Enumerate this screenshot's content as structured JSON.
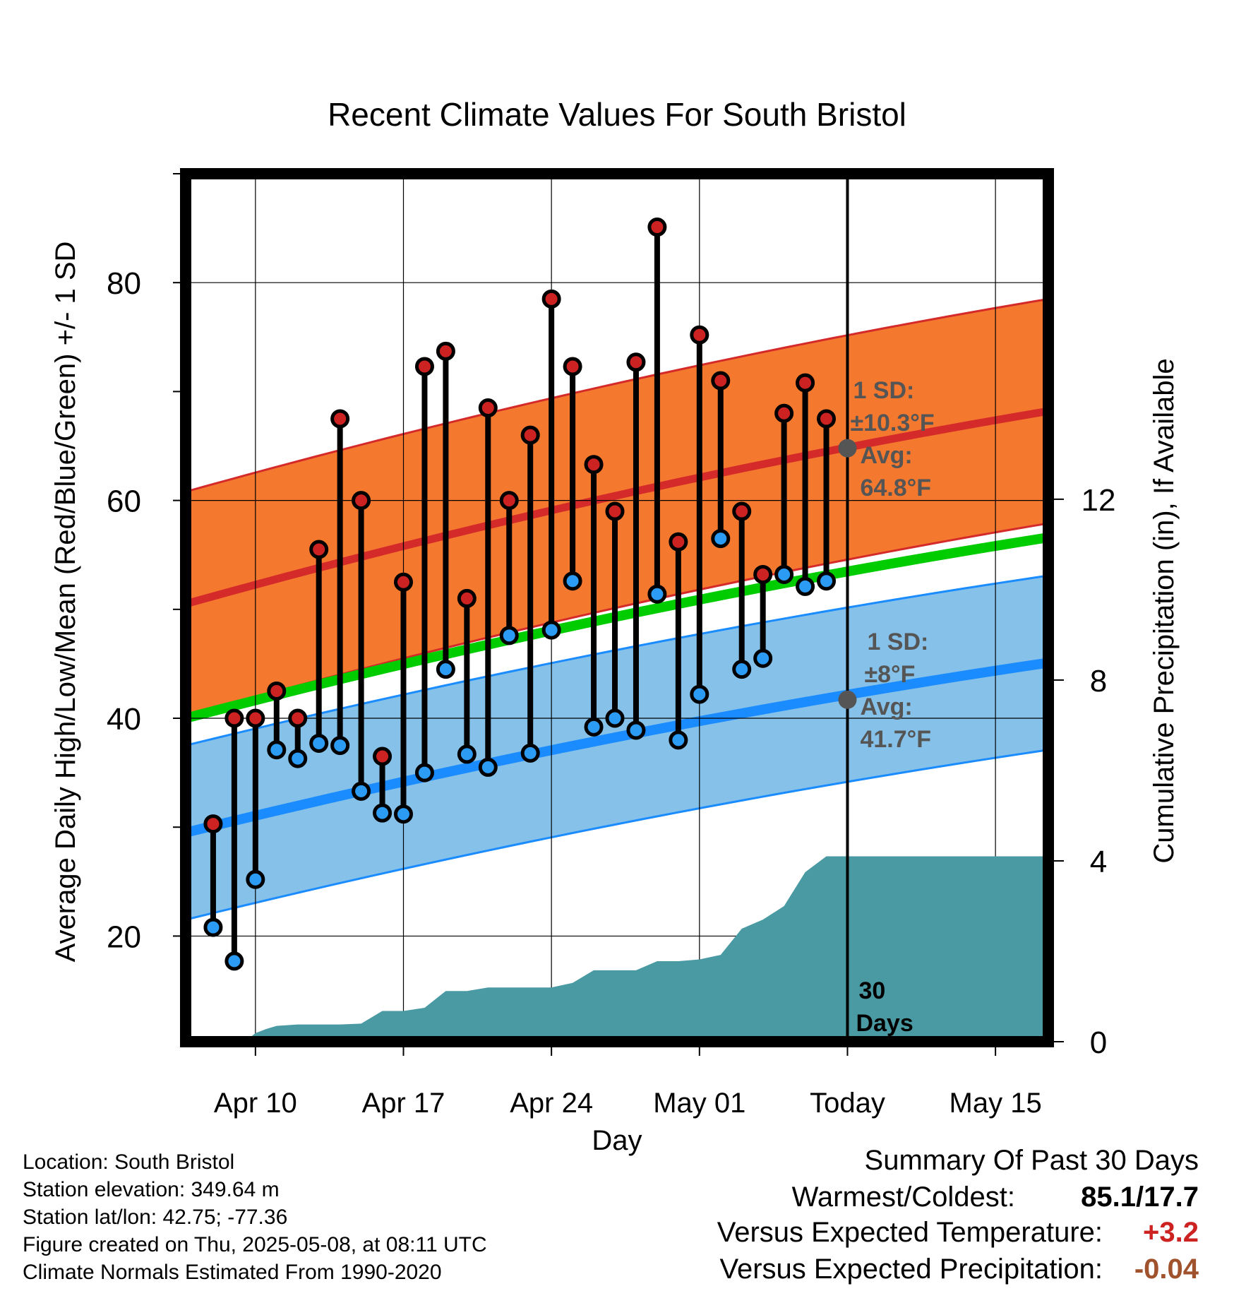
{
  "chart_data": {
    "type": "line",
    "title": "Recent Climate Values For South Bristol",
    "xlabel": "Day",
    "ylabel": "Average Daily High/Low/Mean (Red/Blue/Green) +/- 1 SD",
    "ylabel_right": "Cumulative Precipitation (in), If Available",
    "x_ticks": [
      {
        "day": 10,
        "label": "Apr 10"
      },
      {
        "day": 17,
        "label": "Apr 17"
      },
      {
        "day": 24,
        "label": "Apr 24"
      },
      {
        "day": 31,
        "label": "May 01"
      },
      {
        "day": 38,
        "label": "Today"
      },
      {
        "day": 45,
        "label": "May 15"
      }
    ],
    "xlim": [
      6.7,
      47.5
    ],
    "ylim": [
      10.3,
      90
    ],
    "y_ticks": [
      20,
      40,
      60,
      80
    ],
    "y2lim": [
      0,
      19.2
    ],
    "y2_ticks": [
      0,
      4,
      8,
      12
    ],
    "grid": true,
    "today_day": 38,
    "colors": {
      "high_band": "#f4792f",
      "high_line": "#d42a2a",
      "low_band": "#85c1e9",
      "low_line": "#1a8cff",
      "mean_line": "#00cc00",
      "precip": "#4a9aa3",
      "high_dot": "#cc2222",
      "low_dot": "#2b9bf4",
      "avg_marker": "#555555",
      "annot_text": "#555555",
      "pos_anom": "#cc2222",
      "neg_anom": "#a0522d"
    },
    "normals": {
      "high_mean": {
        "start": 50.5,
        "end": 68.2
      },
      "high_sd": 10.3,
      "low_mean": {
        "start": 29.5,
        "end": 45.1
      },
      "low_sd": 8,
      "mean": {
        "start": 40.0,
        "end": 56.6
      }
    },
    "series": [
      {
        "name": "High",
        "days": [
          8,
          9,
          10,
          11,
          12,
          13,
          14,
          15,
          16,
          17,
          18,
          19,
          20,
          21,
          22,
          23,
          24,
          25,
          26,
          27,
          28,
          29,
          30,
          31,
          32,
          33,
          34,
          35,
          36,
          37
        ],
        "values": [
          30.3,
          40,
          40,
          42.5,
          40,
          55.5,
          67.5,
          60,
          36.5,
          52.5,
          72.3,
          73.7,
          51,
          68.5,
          60,
          66,
          78.5,
          72.3,
          63.3,
          59,
          72.7,
          85.1,
          56.2,
          75.2,
          71,
          59,
          53.2,
          68,
          70.8,
          67.5
        ]
      },
      {
        "name": "Low",
        "days": [
          8,
          9,
          10,
          11,
          12,
          13,
          14,
          15,
          16,
          17,
          18,
          19,
          20,
          21,
          22,
          23,
          24,
          25,
          26,
          27,
          28,
          29,
          30,
          31,
          32,
          33,
          34,
          35,
          36,
          37
        ],
        "values": [
          20.8,
          17.7,
          25.2,
          37.1,
          36.3,
          37.7,
          37.5,
          33.3,
          31.3,
          31.2,
          35,
          44.5,
          36.7,
          35.5,
          47.6,
          36.8,
          48.1,
          52.6,
          39.2,
          40,
          38.9,
          51.4,
          38,
          42.2,
          56.5,
          44.5,
          45.5,
          53.2,
          52.1,
          52.6
        ]
      }
    ],
    "precipitation": {
      "days": [
        9.5,
        10,
        10.5,
        11,
        12,
        13,
        14,
        15,
        16,
        17,
        18,
        19,
        20,
        21,
        22,
        23,
        24,
        25,
        26,
        27,
        28,
        29,
        30,
        31,
        32,
        33,
        34,
        35,
        36,
        37,
        38,
        47.5
      ],
      "values": [
        0,
        0.19,
        0.28,
        0.35,
        0.38,
        0.38,
        0.38,
        0.4,
        0.68,
        0.68,
        0.75,
        1.12,
        1.12,
        1.2,
        1.2,
        1.2,
        1.2,
        1.3,
        1.58,
        1.58,
        1.58,
        1.78,
        1.78,
        1.82,
        1.92,
        2.5,
        2.7,
        3,
        3.75,
        4.1,
        4.1,
        4.1
      ]
    },
    "annotations": {
      "high_sd": "1 SD:",
      "high_sd_value": "±10.3°F",
      "high_avg": "Avg:",
      "high_avg_value": "64.8°F",
      "low_sd": "1 SD:",
      "low_sd_value": "±8°F",
      "low_avg": "Avg:",
      "low_avg_value": "41.7°F",
      "period_num": "30",
      "period_unit": "Days",
      "avg_high_marker": 64.8,
      "avg_low_marker": 41.7
    }
  },
  "footer": {
    "location": "Location: South Bristol",
    "elevation": "Station elevation: 349.64 m",
    "latlon": "Station lat/lon: 42.75; -77.36",
    "created": "Figure created on Thu, 2025-05-08, at 08:11 UTC",
    "normals": "Climate Normals Estimated From 1990-2020"
  },
  "summary": {
    "title": "Summary Of Past 30 Days",
    "warmest_label": "Warmest/Coldest:",
    "warmest_value": "85.1/17.7",
    "temp_label": "Versus Expected Temperature:",
    "temp_value": "+3.2",
    "precip_label": "Versus Expected Precipitation:",
    "precip_value": "-0.04"
  }
}
